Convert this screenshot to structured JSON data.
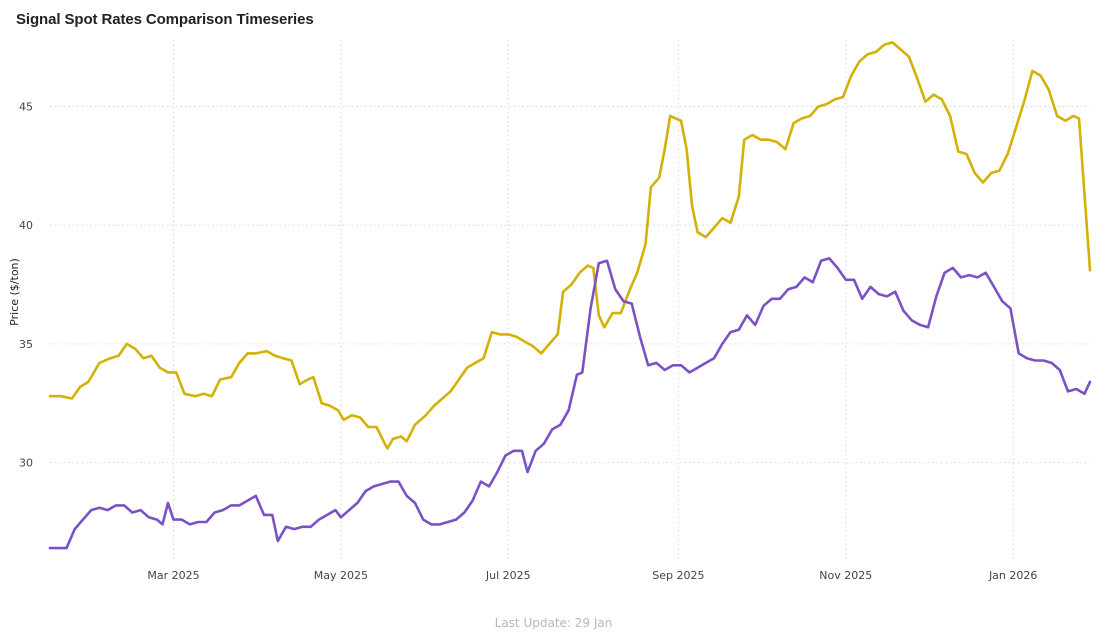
{
  "title": "Signal Spot Rates Comparison Timeseries",
  "footer": "Last Update: 29 Jan",
  "chart_data": {
    "type": "line",
    "title": "Signal Spot Rates Comparison Timeseries",
    "xlabel": "",
    "ylabel": "Price ($/ton)",
    "xlim": [
      "2025-01-15",
      "2026-01-29"
    ],
    "ylim": [
      25.9,
      47.8
    ],
    "y_ticks": [
      30,
      35,
      40,
      45
    ],
    "x_ticks": [
      {
        "date": "2025-03-01",
        "label": "Mar 2025"
      },
      {
        "date": "2025-05-01",
        "label": "May 2025"
      },
      {
        "date": "2025-07-01",
        "label": "Jul 2025"
      },
      {
        "date": "2025-09-01",
        "label": "Sep 2025"
      },
      {
        "date": "2025-11-01",
        "label": "Nov 2025"
      },
      {
        "date": "2026-01-01",
        "label": "Jan 2026"
      }
    ],
    "grid": true,
    "legend": "none",
    "series": [
      {
        "color": "#d4b106",
        "points": [
          [
            "2025-01-15",
            32.8
          ],
          [
            "2025-01-19",
            32.8
          ],
          [
            "2025-01-23",
            32.7
          ],
          [
            "2025-01-26",
            33.2
          ],
          [
            "2025-01-29",
            33.4
          ],
          [
            "2025-02-02",
            34.2
          ],
          [
            "2025-02-06",
            34.4
          ],
          [
            "2025-02-09",
            34.5
          ],
          [
            "2025-02-12",
            35.0
          ],
          [
            "2025-02-15",
            34.8
          ],
          [
            "2025-02-18",
            34.4
          ],
          [
            "2025-02-21",
            34.5
          ],
          [
            "2025-02-24",
            34.0
          ],
          [
            "2025-02-27",
            33.8
          ],
          [
            "2025-03-02",
            33.8
          ],
          [
            "2025-03-05",
            32.9
          ],
          [
            "2025-03-09",
            32.8
          ],
          [
            "2025-03-12",
            32.9
          ],
          [
            "2025-03-15",
            32.8
          ],
          [
            "2025-03-18",
            33.5
          ],
          [
            "2025-03-22",
            33.6
          ],
          [
            "2025-03-25",
            34.2
          ],
          [
            "2025-03-28",
            34.6
          ],
          [
            "2025-03-31",
            34.6
          ],
          [
            "2025-04-04",
            34.7
          ],
          [
            "2025-04-07",
            34.5
          ],
          [
            "2025-04-10",
            34.4
          ],
          [
            "2025-04-13",
            34.3
          ],
          [
            "2025-04-16",
            33.3
          ],
          [
            "2025-04-19",
            33.5
          ],
          [
            "2025-04-21",
            33.6
          ],
          [
            "2025-04-24",
            32.5
          ],
          [
            "2025-04-27",
            32.4
          ],
          [
            "2025-04-30",
            32.2
          ],
          [
            "2025-05-02",
            31.8
          ],
          [
            "2025-05-05",
            32.0
          ],
          [
            "2025-05-08",
            31.9
          ],
          [
            "2025-05-11",
            31.5
          ],
          [
            "2025-05-14",
            31.5
          ],
          [
            "2025-05-17",
            30.8
          ],
          [
            "2025-05-18",
            30.6
          ],
          [
            "2025-05-20",
            31.0
          ],
          [
            "2025-05-23",
            31.1
          ],
          [
            "2025-05-25",
            30.9
          ],
          [
            "2025-05-28",
            31.6
          ],
          [
            "2025-06-01",
            32.0
          ],
          [
            "2025-06-04",
            32.4
          ],
          [
            "2025-06-07",
            32.7
          ],
          [
            "2025-06-10",
            33.0
          ],
          [
            "2025-06-13",
            33.5
          ],
          [
            "2025-06-16",
            34.0
          ],
          [
            "2025-06-19",
            34.2
          ],
          [
            "2025-06-22",
            34.4
          ],
          [
            "2025-06-25",
            35.5
          ],
          [
            "2025-06-28",
            35.4
          ],
          [
            "2025-07-01",
            35.4
          ],
          [
            "2025-07-04",
            35.3
          ],
          [
            "2025-07-07",
            35.1
          ],
          [
            "2025-07-10",
            34.9
          ],
          [
            "2025-07-13",
            34.6
          ],
          [
            "2025-07-16",
            35.0
          ],
          [
            "2025-07-19",
            35.4
          ],
          [
            "2025-07-21",
            37.2
          ],
          [
            "2025-07-24",
            37.5
          ],
          [
            "2025-07-27",
            38.0
          ],
          [
            "2025-07-30",
            38.3
          ],
          [
            "2025-08-01",
            38.2
          ],
          [
            "2025-08-03",
            36.2
          ],
          [
            "2025-08-05",
            35.7
          ],
          [
            "2025-08-08",
            36.3
          ],
          [
            "2025-08-11",
            36.3
          ],
          [
            "2025-08-14",
            37.2
          ],
          [
            "2025-08-17",
            38.0
          ],
          [
            "2025-08-20",
            39.2
          ],
          [
            "2025-08-22",
            41.6
          ],
          [
            "2025-08-25",
            42.0
          ],
          [
            "2025-08-27",
            43.2
          ],
          [
            "2025-08-29",
            44.6
          ],
          [
            "2025-08-31",
            44.5
          ],
          [
            "2025-09-02",
            44.4
          ],
          [
            "2025-09-04",
            43.2
          ],
          [
            "2025-09-06",
            40.8
          ],
          [
            "2025-09-08",
            39.7
          ],
          [
            "2025-09-11",
            39.5
          ],
          [
            "2025-09-14",
            39.9
          ],
          [
            "2025-09-17",
            40.3
          ],
          [
            "2025-09-20",
            40.1
          ],
          [
            "2025-09-23",
            41.2
          ],
          [
            "2025-09-25",
            43.6
          ],
          [
            "2025-09-28",
            43.8
          ],
          [
            "2025-10-01",
            43.6
          ],
          [
            "2025-10-04",
            43.6
          ],
          [
            "2025-10-07",
            43.5
          ],
          [
            "2025-10-10",
            43.2
          ],
          [
            "2025-10-13",
            44.3
          ],
          [
            "2025-10-16",
            44.5
          ],
          [
            "2025-10-19",
            44.6
          ],
          [
            "2025-10-22",
            45.0
          ],
          [
            "2025-10-25",
            45.1
          ],
          [
            "2025-10-28",
            45.3
          ],
          [
            "2025-10-31",
            45.4
          ],
          [
            "2025-11-03",
            46.3
          ],
          [
            "2025-11-06",
            46.9
          ],
          [
            "2025-11-09",
            47.2
          ],
          [
            "2025-11-12",
            47.3
          ],
          [
            "2025-11-15",
            47.6
          ],
          [
            "2025-11-18",
            47.7
          ],
          [
            "2025-11-21",
            47.4
          ],
          [
            "2025-11-24",
            47.1
          ],
          [
            "2025-11-27",
            46.2
          ],
          [
            "2025-11-30",
            45.2
          ],
          [
            "2025-12-03",
            45.5
          ],
          [
            "2025-12-06",
            45.3
          ],
          [
            "2025-12-09",
            44.6
          ],
          [
            "2025-12-12",
            43.1
          ],
          [
            "2025-12-15",
            43.0
          ],
          [
            "2025-12-18",
            42.2
          ],
          [
            "2025-12-21",
            41.8
          ],
          [
            "2025-12-24",
            42.2
          ],
          [
            "2025-12-27",
            42.3
          ],
          [
            "2025-12-30",
            43.0
          ],
          [
            "2026-01-02",
            44.1
          ],
          [
            "2026-01-05",
            45.2
          ],
          [
            "2026-01-08",
            46.5
          ],
          [
            "2026-01-11",
            46.3
          ],
          [
            "2026-01-14",
            45.7
          ],
          [
            "2026-01-17",
            44.6
          ],
          [
            "2026-01-20",
            44.4
          ],
          [
            "2026-01-23",
            44.6
          ],
          [
            "2026-01-25",
            44.5
          ],
          [
            "2026-01-29",
            38.1
          ]
        ]
      },
      {
        "color": "#7b52c6",
        "points": [
          [
            "2025-01-15",
            26.4
          ],
          [
            "2025-01-18",
            26.4
          ],
          [
            "2025-01-21",
            26.4
          ],
          [
            "2025-01-24",
            27.2
          ],
          [
            "2025-01-27",
            27.6
          ],
          [
            "2025-01-30",
            28.0
          ],
          [
            "2025-02-02",
            28.1
          ],
          [
            "2025-02-05",
            28.0
          ],
          [
            "2025-02-08",
            28.2
          ],
          [
            "2025-02-11",
            28.2
          ],
          [
            "2025-02-14",
            27.9
          ],
          [
            "2025-02-17",
            28.0
          ],
          [
            "2025-02-20",
            27.7
          ],
          [
            "2025-02-23",
            27.6
          ],
          [
            "2025-02-25",
            27.4
          ],
          [
            "2025-02-27",
            28.3
          ],
          [
            "2025-03-01",
            27.6
          ],
          [
            "2025-03-04",
            27.6
          ],
          [
            "2025-03-07",
            27.4
          ],
          [
            "2025-03-10",
            27.5
          ],
          [
            "2025-03-13",
            27.5
          ],
          [
            "2025-03-16",
            27.9
          ],
          [
            "2025-03-19",
            28.0
          ],
          [
            "2025-03-22",
            28.2
          ],
          [
            "2025-03-25",
            28.2
          ],
          [
            "2025-03-28",
            28.4
          ],
          [
            "2025-03-31",
            28.6
          ],
          [
            "2025-04-03",
            27.8
          ],
          [
            "2025-04-06",
            27.8
          ],
          [
            "2025-04-08",
            26.7
          ],
          [
            "2025-04-11",
            27.3
          ],
          [
            "2025-04-14",
            27.2
          ],
          [
            "2025-04-17",
            27.3
          ],
          [
            "2025-04-20",
            27.3
          ],
          [
            "2025-04-23",
            27.6
          ],
          [
            "2025-04-26",
            27.8
          ],
          [
            "2025-04-29",
            28.0
          ],
          [
            "2025-05-01",
            27.7
          ],
          [
            "2025-05-04",
            28.0
          ],
          [
            "2025-05-07",
            28.3
          ],
          [
            "2025-05-10",
            28.8
          ],
          [
            "2025-05-13",
            29.0
          ],
          [
            "2025-05-16",
            29.1
          ],
          [
            "2025-05-19",
            29.2
          ],
          [
            "2025-05-22",
            29.2
          ],
          [
            "2025-05-25",
            28.6
          ],
          [
            "2025-05-28",
            28.3
          ],
          [
            "2025-05-31",
            27.6
          ],
          [
            "2025-06-03",
            27.4
          ],
          [
            "2025-06-06",
            27.4
          ],
          [
            "2025-06-09",
            27.5
          ],
          [
            "2025-06-12",
            27.6
          ],
          [
            "2025-06-15",
            27.9
          ],
          [
            "2025-06-18",
            28.4
          ],
          [
            "2025-06-21",
            29.2
          ],
          [
            "2025-06-24",
            29.0
          ],
          [
            "2025-06-27",
            29.6
          ],
          [
            "2025-06-30",
            30.3
          ],
          [
            "2025-07-03",
            30.5
          ],
          [
            "2025-07-06",
            30.5
          ],
          [
            "2025-07-08",
            29.6
          ],
          [
            "2025-07-11",
            30.5
          ],
          [
            "2025-07-14",
            30.8
          ],
          [
            "2025-07-17",
            31.4
          ],
          [
            "2025-07-20",
            31.6
          ],
          [
            "2025-07-23",
            32.2
          ],
          [
            "2025-07-26",
            33.7
          ],
          [
            "2025-07-28",
            33.8
          ],
          [
            "2025-07-31",
            36.5
          ],
          [
            "2025-08-03",
            38.4
          ],
          [
            "2025-08-06",
            38.5
          ],
          [
            "2025-08-09",
            37.3
          ],
          [
            "2025-08-12",
            36.8
          ],
          [
            "2025-08-15",
            36.7
          ],
          [
            "2025-08-18",
            35.3
          ],
          [
            "2025-08-21",
            34.1
          ],
          [
            "2025-08-24",
            34.2
          ],
          [
            "2025-08-27",
            33.9
          ],
          [
            "2025-08-30",
            34.1
          ],
          [
            "2025-09-02",
            34.1
          ],
          [
            "2025-09-05",
            33.8
          ],
          [
            "2025-09-08",
            34.0
          ],
          [
            "2025-09-11",
            34.2
          ],
          [
            "2025-09-14",
            34.4
          ],
          [
            "2025-09-17",
            35.0
          ],
          [
            "2025-09-20",
            35.5
          ],
          [
            "2025-09-23",
            35.6
          ],
          [
            "2025-09-26",
            36.2
          ],
          [
            "2025-09-29",
            35.8
          ],
          [
            "2025-10-02",
            36.6
          ],
          [
            "2025-10-05",
            36.9
          ],
          [
            "2025-10-08",
            36.9
          ],
          [
            "2025-10-11",
            37.3
          ],
          [
            "2025-10-14",
            37.4
          ],
          [
            "2025-10-17",
            37.8
          ],
          [
            "2025-10-20",
            37.6
          ],
          [
            "2025-10-23",
            38.5
          ],
          [
            "2025-10-26",
            38.6
          ],
          [
            "2025-10-29",
            38.2
          ],
          [
            "2025-11-01",
            37.7
          ],
          [
            "2025-11-04",
            37.7
          ],
          [
            "2025-11-07",
            36.9
          ],
          [
            "2025-11-10",
            37.4
          ],
          [
            "2025-11-13",
            37.1
          ],
          [
            "2025-11-16",
            37.0
          ],
          [
            "2025-11-19",
            37.2
          ],
          [
            "2025-11-22",
            36.4
          ],
          [
            "2025-11-25",
            36.0
          ],
          [
            "2025-11-28",
            35.8
          ],
          [
            "2025-12-01",
            35.7
          ],
          [
            "2025-12-04",
            37.0
          ],
          [
            "2025-12-07",
            38.0
          ],
          [
            "2025-12-10",
            38.2
          ],
          [
            "2025-12-13",
            37.8
          ],
          [
            "2025-12-16",
            37.9
          ],
          [
            "2025-12-19",
            37.8
          ],
          [
            "2025-12-22",
            38.0
          ],
          [
            "2025-12-25",
            37.4
          ],
          [
            "2025-12-28",
            36.8
          ],
          [
            "2025-12-31",
            36.5
          ],
          [
            "2026-01-03",
            34.6
          ],
          [
            "2026-01-06",
            34.4
          ],
          [
            "2026-01-09",
            34.3
          ],
          [
            "2026-01-12",
            34.3
          ],
          [
            "2026-01-15",
            34.2
          ],
          [
            "2026-01-18",
            33.9
          ],
          [
            "2026-01-21",
            33.0
          ],
          [
            "2026-01-24",
            33.1
          ],
          [
            "2026-01-27",
            32.9
          ],
          [
            "2026-01-29",
            33.4
          ]
        ]
      }
    ]
  }
}
